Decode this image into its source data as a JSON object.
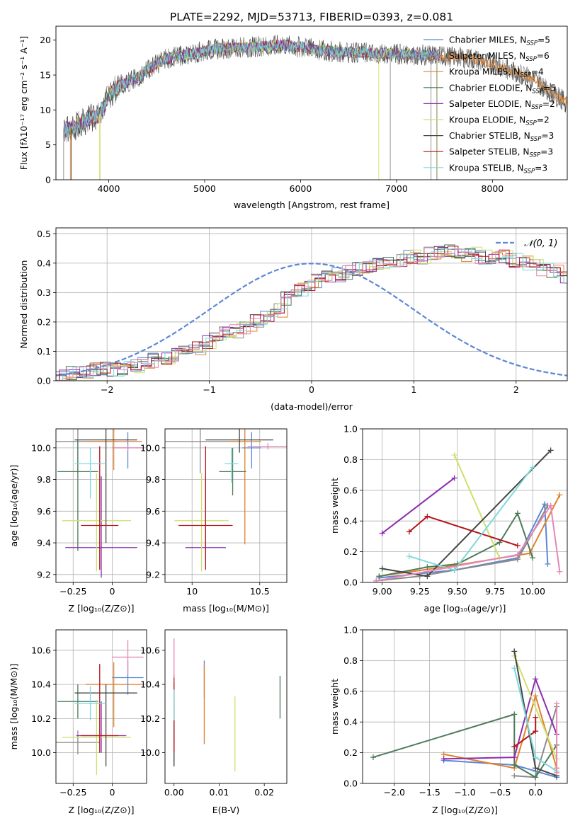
{
  "figure": {
    "title": "PLATE=2292, MJD=53713, FIBERID=0393, z=0.081"
  },
  "colors": {
    "Chabrier MILES": "#5b87d6",
    "Salpeter MILES": "#8a8a8a",
    "Kroupa MILES": "#e0812c",
    "Chabrier ELODIE": "#4d7a5a",
    "Salpeter ELODIE": "#8e2dae",
    "Kroupa ELODIE": "#cfe06b",
    "Chabrier STELIB": "#454545",
    "Salpeter STELIB": "#b3141b",
    "Kroupa STELIB": "#7dd9dc",
    "pink": "#e587b5",
    "normal": "#5b87d6"
  },
  "chart_data": [
    {
      "type": "line",
      "panel": "spectrum",
      "xlabel": "wavelength [Angstrom, rest frame]",
      "ylabel": "Flux [fλ10⁻¹⁷ erg cm⁻² s⁻¹ A⁻¹]",
      "xlim": [
        3450,
        8780
      ],
      "ylim": [
        0,
        22
      ],
      "xticks": [
        4000,
        5000,
        6000,
        7000,
        8000
      ],
      "yticks": [
        0,
        5,
        10,
        15,
        20
      ],
      "grid": false,
      "legend_position": "top-right",
      "legend": [
        "Chabrier MILES, N_SSP=5",
        "Salpeter MILES, N_SSP=6",
        "Kroupa MILES, N_SSP=4",
        "Chabrier ELODIE, N_SSP=5",
        "Salpeter ELODIE, N_SSP=2",
        "Kroupa ELODIE, N_SSP=2",
        "Chabrier STELIB, N_SSP=3",
        "Salpeter STELIB, N_SSP=3",
        "Kroupa STELIB, N_SSP=3"
      ],
      "continuum": {
        "x": [
          3530,
          3600,
          3700,
          3800,
          3900,
          3950,
          4000,
          4100,
          4200,
          4300,
          4400,
          4500,
          4600,
          4700,
          4800,
          4900,
          5000,
          5200,
          5400,
          5600,
          5800,
          6000,
          6200,
          6400,
          6600,
          6800,
          7000,
          7200,
          7400,
          7600,
          7800,
          8000,
          8200,
          8400,
          8600,
          8780
        ],
        "y": [
          7.0,
          7.3,
          8.0,
          8.8,
          9.2,
          10.5,
          12.0,
          13.5,
          14.0,
          14.6,
          15.8,
          16.6,
          17.3,
          17.6,
          17.9,
          18.2,
          18.5,
          18.8,
          19.0,
          19.1,
          19.3,
          19.0,
          18.6,
          18.3,
          18.2,
          18.1,
          18.0,
          17.9,
          17.8,
          17.6,
          17.3,
          16.6,
          15.6,
          14.6,
          12.6,
          11.0
        ]
      },
      "dropouts": {
        "x": [
          3530,
          3600,
          3610,
          3905,
          3910,
          6815,
          6935,
          7360,
          7420,
          7425
        ],
        "y_min": 0
      }
    },
    {
      "type": "histogram",
      "panel": "residuals",
      "xlabel": "(data-model)/error",
      "ylabel": "Normed distribution",
      "xlim": [
        -2.5,
        2.5
      ],
      "ylim": [
        0,
        0.52
      ],
      "xticks": [
        -2,
        -1,
        0,
        1,
        2
      ],
      "yticks": [
        0.0,
        0.1,
        0.2,
        0.3,
        0.4,
        0.5
      ],
      "grid": true,
      "legend": [
        "𝒩(0, 1)"
      ],
      "legend_position": "top-right",
      "bin_width": 0.1,
      "base_counts": [
        0.02,
        0.025,
        0.03,
        0.038,
        0.04,
        0.04,
        0.045,
        0.05,
        0.06,
        0.07,
        0.08,
        0.085,
        0.095,
        0.11,
        0.13,
        0.15,
        0.16,
        0.17,
        0.18,
        0.2,
        0.22,
        0.24,
        0.28,
        0.31,
        0.33,
        0.34,
        0.35,
        0.36,
        0.37,
        0.38,
        0.39,
        0.4,
        0.41,
        0.41,
        0.42,
        0.42,
        0.43,
        0.44,
        0.44,
        0.43,
        0.43,
        0.42,
        0.42,
        0.42,
        0.41,
        0.4,
        0.4,
        0.38,
        0.37,
        0.35,
        0.33,
        0.3,
        0.28,
        0.26,
        0.23,
        0.2,
        0.18,
        0.17,
        0.16,
        0.15,
        0.14,
        0.13,
        0.11,
        0.1,
        0.09,
        0.08,
        0.07,
        0.06,
        0.05,
        0.045,
        0.04,
        0.035,
        0.03,
        0.028,
        0.025,
        0.022,
        0.02,
        0.02,
        0.018,
        0.018
      ],
      "base_start": -2.5
    },
    {
      "type": "scatter",
      "panel": "age-vs-Z",
      "xlabel": "Z [log₁₀(Z/Z⊙)]",
      "ylabel": "age  [log₁₀(age/yr)]",
      "xlim": [
        -0.36,
        0.22
      ],
      "ylim": [
        9.15,
        10.12
      ],
      "xticks": [
        -0.25,
        0.0
      ],
      "yticks": [
        9.2,
        9.4,
        9.6,
        9.8,
        10.0
      ],
      "grid": true,
      "points": [
        {
          "model": "Chabrier MILES",
          "x": 0.1,
          "y": 10.0,
          "xerr": 0.1,
          "yerr": [
            0.13,
            0.1
          ]
        },
        {
          "model": "Salpeter MILES",
          "x": -0.22,
          "y": 10.04,
          "xerr": 0.25,
          "yerr": [
            0.2,
            0.1
          ]
        },
        {
          "model": "Kroupa MILES",
          "x": 0.01,
          "y": 10.04,
          "xerr": 0.18,
          "yerr": [
            0.18,
            0.12
          ]
        },
        {
          "model": "Chabrier ELODIE",
          "x": -0.22,
          "y": 9.85,
          "xerr": 0.13,
          "yerr": [
            0.5,
            0.2
          ]
        },
        {
          "model": "Salpeter ELODIE",
          "x": -0.07,
          "y": 9.37,
          "xerr": 0.23,
          "yerr": [
            0.19,
            0.45
          ]
        },
        {
          "model": "Kroupa ELODIE",
          "x": -0.1,
          "y": 9.54,
          "xerr": 0.22,
          "yerr": [
            0.32,
            0.3
          ]
        },
        {
          "model": "Chabrier STELIB",
          "x": -0.04,
          "y": 10.05,
          "xerr": 0.2,
          "yerr": [
            0.65,
            0.07
          ]
        },
        {
          "model": "Salpeter STELIB",
          "x": -0.08,
          "y": 9.51,
          "xerr": 0.12,
          "yerr": [
            0.28,
            0.5
          ]
        },
        {
          "model": "Kroupa STELIB",
          "x": -0.14,
          "y": 9.9,
          "xerr": 0.1,
          "yerr": [
            0.22,
            0.1
          ]
        },
        {
          "model": "pink",
          "x": 0.1,
          "y": 10.0,
          "xerr": 0.1,
          "yerr": [
            0.02,
            0.02
          ]
        }
      ]
    },
    {
      "type": "scatter",
      "panel": "age-vs-mass",
      "xlabel": "mass [log₁₀(M/M⊙)]",
      "ylabel": "",
      "xlim": [
        9.8,
        10.7
      ],
      "ylim": [
        9.15,
        10.12
      ],
      "xticks": [
        10.0,
        10.5
      ],
      "yticks": [
        9.2,
        9.4,
        9.6,
        9.8,
        10.0
      ],
      "grid": true,
      "points": [
        {
          "model": "Chabrier MILES",
          "x": 10.44,
          "y": 10.0,
          "xerr": 0.07,
          "yerr": [
            0.13,
            0.1
          ]
        },
        {
          "model": "Salpeter MILES",
          "x": 10.06,
          "y": 10.04,
          "xerr": 0.3,
          "yerr": [
            0.2,
            0.1
          ]
        },
        {
          "model": "Kroupa MILES",
          "x": 10.39,
          "y": 10.04,
          "xerr": 0.12,
          "yerr": [
            0.65,
            0.12
          ]
        },
        {
          "model": "Chabrier ELODIE",
          "x": 10.3,
          "y": 9.85,
          "xerr": 0.1,
          "yerr": [
            0.15,
            0.15
          ]
        },
        {
          "model": "Salpeter ELODIE",
          "x": 10.1,
          "y": 9.37,
          "xerr": 0.15,
          "yerr": [
            0.08,
            0.45
          ]
        },
        {
          "model": "Kroupa ELODIE",
          "x": 10.07,
          "y": 9.54,
          "xerr": 0.2,
          "yerr": [
            0.32,
            0.3
          ]
        },
        {
          "model": "Chabrier STELIB",
          "x": 10.35,
          "y": 10.05,
          "xerr": 0.25,
          "yerr": [
            0.08,
            0.07
          ]
        },
        {
          "model": "Salpeter STELIB",
          "x": 10.1,
          "y": 9.51,
          "xerr": 0.2,
          "yerr": [
            0.28,
            0.5
          ]
        },
        {
          "model": "Kroupa STELIB",
          "x": 10.29,
          "y": 9.9,
          "xerr": 0.05,
          "yerr": [
            0.12,
            0.1
          ]
        },
        {
          "model": "pink",
          "x": 10.56,
          "y": 10.01,
          "xerr": 0.15,
          "yerr": [
            0.02,
            0.02
          ]
        }
      ]
    },
    {
      "type": "line",
      "panel": "weight-vs-age",
      "xlabel": "age  [log₁₀(age/yr)]",
      "ylabel": "mass weight",
      "xlim": [
        8.87,
        10.23
      ],
      "ylim": [
        0,
        1.0
      ],
      "xticks": [
        9.0,
        9.25,
        9.5,
        9.75,
        10.0
      ],
      "xticklabels": [
        "9.00",
        "9.25",
        "9.50",
        "9.75",
        "10.00"
      ],
      "yticks": [
        0.0,
        0.2,
        0.4,
        0.6,
        0.8,
        1.0
      ],
      "grid": true,
      "series": [
        {
          "model": "Chabrier MILES",
          "x": [
            8.98,
            9.48,
            9.9,
            10.08,
            10.1
          ],
          "y": [
            0.03,
            0.08,
            0.16,
            0.51,
            0.12
          ]
        },
        {
          "model": "Salpeter MILES",
          "x": [
            8.96,
            9.25,
            9.48,
            9.9,
            10.1
          ],
          "y": [
            0.01,
            0.04,
            0.08,
            0.15,
            0.5
          ]
        },
        {
          "model": "Kroupa MILES",
          "x": [
            8.98,
            9.48,
            9.98,
            10.18
          ],
          "y": [
            0.04,
            0.11,
            0.19,
            0.57
          ]
        },
        {
          "model": "Chabrier ELODIE",
          "x": [
            8.98,
            9.3,
            9.5,
            9.78,
            9.9,
            10.0
          ],
          "y": [
            0.04,
            0.1,
            0.12,
            0.26,
            0.45,
            0.16
          ]
        },
        {
          "model": "Salpeter ELODIE",
          "x": [
            9.0,
            9.48
          ],
          "y": [
            0.32,
            0.68
          ]
        },
        {
          "model": "Kroupa ELODIE",
          "x": [
            9.48,
            9.78
          ],
          "y": [
            0.83,
            0.16
          ]
        },
        {
          "model": "Chabrier STELIB",
          "x": [
            9.0,
            9.3,
            10.12
          ],
          "y": [
            0.09,
            0.04,
            0.86
          ]
        },
        {
          "model": "Salpeter STELIB",
          "x": [
            9.18,
            9.3,
            9.9
          ],
          "y": [
            0.33,
            0.43,
            0.24
          ]
        },
        {
          "model": "Kroupa STELIB",
          "x": [
            9.18,
            9.48,
            10.0
          ],
          "y": [
            0.17,
            0.08,
            0.75
          ]
        },
        {
          "model": "pink",
          "x": [
            8.96,
            9.9,
            10.12,
            10.18
          ],
          "y": [
            0.01,
            0.18,
            0.5,
            0.07
          ]
        }
      ]
    },
    {
      "type": "scatter",
      "panel": "mass-vs-Z",
      "xlabel": "Z [log₁₀(Z/Z⊙)]",
      "ylabel": "mass [log₁₀(M/M⊙)]",
      "xlim": [
        -0.36,
        0.22
      ],
      "ylim": [
        9.82,
        10.72
      ],
      "xticks": [
        -0.25,
        0.0
      ],
      "yticks": [
        10.0,
        10.2,
        10.4,
        10.6
      ],
      "grid": true,
      "points": [
        {
          "model": "Chabrier MILES",
          "x": 0.1,
          "y": 10.44,
          "xerr": 0.1,
          "yerr": [
            0.1,
            0.1
          ]
        },
        {
          "model": "Salpeter MILES",
          "x": -0.22,
          "y": 10.06,
          "xerr": 0.14,
          "yerr": [
            0.07,
            0.07
          ]
        },
        {
          "model": "Kroupa MILES",
          "x": 0.01,
          "y": 10.4,
          "xerr": 0.18,
          "yerr": [
            0.25,
            0.13
          ]
        },
        {
          "model": "Chabrier ELODIE",
          "x": -0.22,
          "y": 10.3,
          "xerr": 0.13,
          "yerr": [
            0.1,
            0.1
          ]
        },
        {
          "model": "Salpeter ELODIE",
          "x": -0.07,
          "y": 10.1,
          "xerr": 0.16,
          "yerr": [
            0.1,
            0.2
          ]
        },
        {
          "model": "Kroupa ELODIE",
          "x": -0.1,
          "y": 10.09,
          "xerr": 0.22,
          "yerr": [
            0.22,
            0.22
          ]
        },
        {
          "model": "Chabrier STELIB",
          "x": -0.04,
          "y": 10.35,
          "xerr": 0.2,
          "yerr": [
            0.43,
            0.05
          ]
        },
        {
          "model": "Salpeter STELIB",
          "x": -0.08,
          "y": 10.1,
          "xerr": 0.12,
          "yerr": [
            0.1,
            0.42
          ]
        },
        {
          "model": "Kroupa STELIB",
          "x": -0.14,
          "y": 10.29,
          "xerr": 0.1,
          "yerr": [
            0.1,
            0.1
          ]
        },
        {
          "model": "pink",
          "x": 0.1,
          "y": 10.56,
          "xerr": 0.1,
          "yerr": [
            0.1,
            0.1
          ]
        }
      ]
    },
    {
      "type": "scatter",
      "panel": "mass-vs-ebv",
      "xlabel": "E(B-V)",
      "ylabel": "",
      "xlim": [
        -0.002,
        0.025
      ],
      "ylim": [
        9.82,
        10.72
      ],
      "xticks": [
        0.0,
        0.01,
        0.02
      ],
      "xticklabels": [
        "0.00",
        "0.01",
        "0.02"
      ],
      "yticks": [
        10.0,
        10.2,
        10.4,
        10.6
      ],
      "grid": false,
      "points": [
        {
          "model": "Chabrier MILES",
          "x": 0.0067,
          "y": 10.44,
          "yerr": [
            0.12,
            0.1
          ]
        },
        {
          "model": "Salpeter MILES",
          "x": 0.0,
          "y": 10.06,
          "yerr": [
            0.14,
            0.35
          ]
        },
        {
          "model": "Kroupa MILES",
          "x": 0.0067,
          "y": 10.4,
          "yerr": [
            0.35,
            0.12
          ]
        },
        {
          "model": "Chabrier ELODIE",
          "x": 0.0235,
          "y": 10.3,
          "yerr": [
            0.1,
            0.15
          ]
        },
        {
          "model": "Salpeter ELODIE",
          "x": 0.0,
          "y": 10.15,
          "yerr": [
            0.1,
            0.1
          ]
        },
        {
          "model": "Kroupa ELODIE",
          "x": 0.0135,
          "y": 10.09,
          "yerr": [
            0.2,
            0.24
          ]
        },
        {
          "model": "Chabrier STELIB",
          "x": 0.0,
          "y": 10.1,
          "yerr": [
            0.18,
            0.2
          ]
        },
        {
          "model": "Salpeter STELIB",
          "x": 0.0,
          "y": 10.2,
          "yerr": [
            0.2,
            0.26
          ]
        },
        {
          "model": "Kroupa STELIB",
          "x": 0.0,
          "y": 10.29,
          "yerr": [
            0.1,
            0.08
          ]
        },
        {
          "model": "pink",
          "x": 0.0,
          "y": 10.56,
          "yerr": [
            0.12,
            0.11
          ]
        }
      ]
    },
    {
      "type": "line",
      "panel": "weight-vs-Z",
      "xlabel": "Z [log₁₀(Z/Z⊙)]",
      "ylabel": "mass weight",
      "xlim": [
        -2.45,
        0.45
      ],
      "ylim": [
        0,
        1.0
      ],
      "xticks": [
        -2.0,
        -1.5,
        -1.0,
        -0.5,
        0.0
      ],
      "xticklabels": [
        "−2.0",
        "−1.5",
        "−1.0",
        "−0.5",
        "0.0"
      ],
      "yticks": [
        0.0,
        0.2,
        0.4,
        0.6,
        0.8,
        1.0
      ],
      "grid": true,
      "series": [
        {
          "model": "Chabrier MILES",
          "x": [
            -1.3,
            -0.3,
            0.0,
            0.3
          ],
          "y": [
            0.15,
            0.12,
            0.08,
            0.04
          ]
        },
        {
          "model": "Salpeter MILES",
          "x": [
            -0.3,
            0.0,
            0.3
          ],
          "y": [
            0.05,
            0.04,
            0.5
          ]
        },
        {
          "model": "Kroupa MILES",
          "x": [
            -1.3,
            -0.3,
            0.0,
            0.3
          ],
          "y": [
            0.19,
            0.1,
            0.57,
            0.1
          ]
        },
        {
          "model": "Chabrier ELODIE",
          "x": [
            -2.3,
            -0.3,
            -0.3,
            0.0,
            0.3
          ],
          "y": [
            0.17,
            0.45,
            0.12,
            0.04,
            0.25
          ]
        },
        {
          "model": "Salpeter ELODIE",
          "x": [
            -1.3,
            -0.3,
            0.0,
            0.3
          ],
          "y": [
            0.16,
            0.17,
            0.68,
            0.32
          ]
        },
        {
          "model": "Kroupa ELODIE",
          "x": [
            -0.3,
            0.3
          ],
          "y": [
            0.83,
            0.16
          ]
        },
        {
          "model": "Chabrier STELIB",
          "x": [
            -0.3,
            0.0,
            0.3
          ],
          "y": [
            0.86,
            0.1,
            0.05
          ]
        },
        {
          "model": "Salpeter STELIB",
          "x": [
            -0.3,
            0.0,
            0.0
          ],
          "y": [
            0.24,
            0.34,
            0.43
          ]
        },
        {
          "model": "Kroupa STELIB",
          "x": [
            -0.3,
            0.0,
            0.3
          ],
          "y": [
            0.75,
            0.17,
            0.08
          ]
        },
        {
          "model": "pink",
          "x": [
            0.3,
            0.3
          ],
          "y": [
            0.52,
            0.07
          ]
        }
      ]
    }
  ]
}
